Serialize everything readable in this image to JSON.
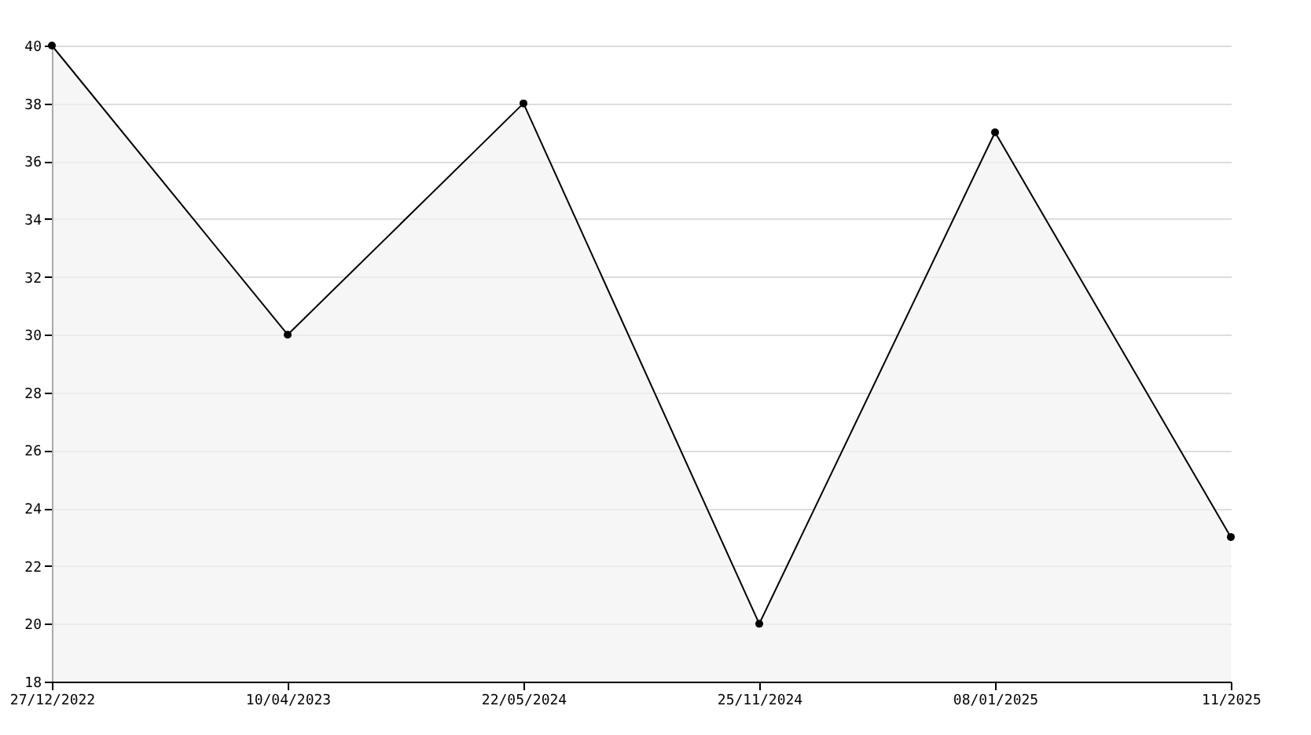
{
  "chart_data": {
    "type": "area",
    "categories": [
      "27/12/2022",
      "10/04/2023",
      "22/05/2024",
      "25/11/2024",
      "08/01/2025",
      "11/2025"
    ],
    "series": [
      {
        "color": "#000000",
        "values": [
          40,
          30,
          38,
          20,
          37,
          23
        ]
      }
    ],
    "ylim": [
      18,
      40
    ],
    "yticks": [
      18,
      20,
      22,
      24,
      26,
      28,
      30,
      32,
      34,
      36,
      38,
      40
    ],
    "grid": "y",
    "marker": "circle",
    "line_style": "solid"
  }
}
